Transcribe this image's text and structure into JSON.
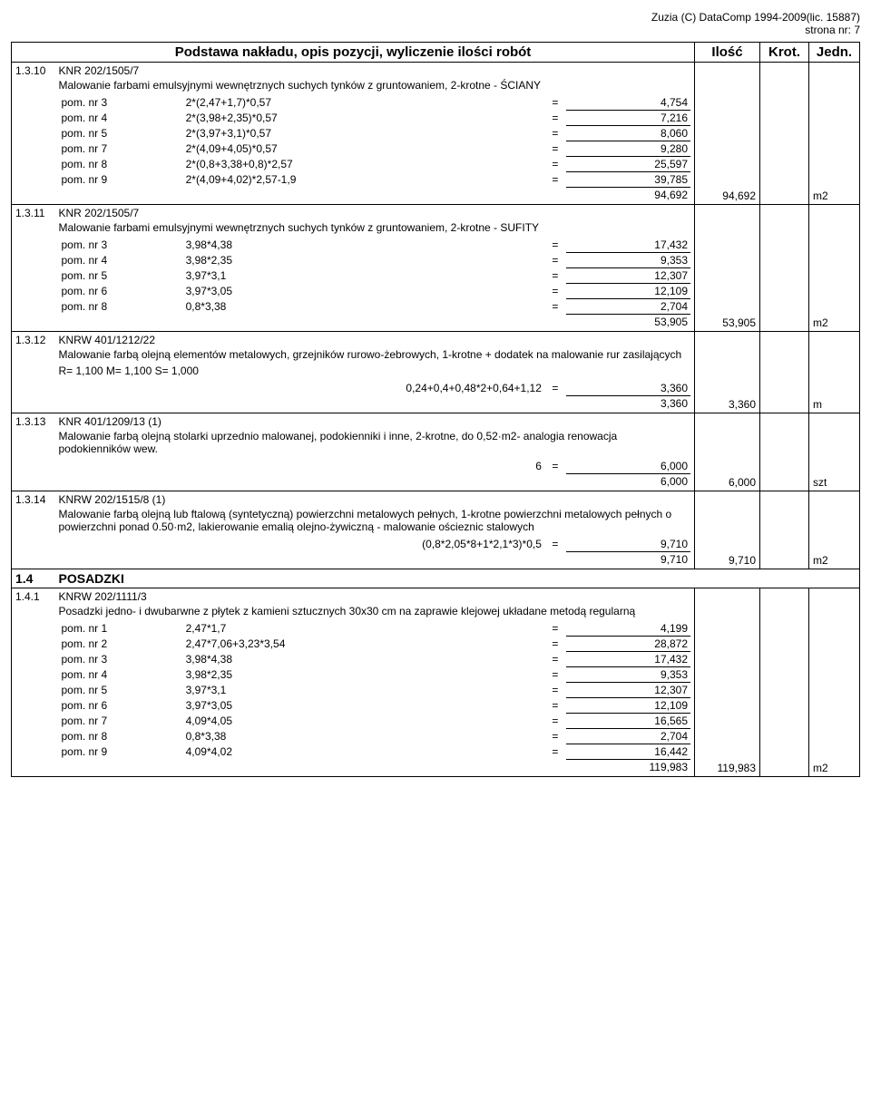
{
  "header": {
    "line1": "Zuzia (C) DataComp 1994-2009(lic. 15887)",
    "line2": "strona nr:       7"
  },
  "columns": {
    "desc": "Podstawa nakładu, opis pozycji, wyliczenie ilości robót",
    "qty": "Ilość",
    "krot": "Krot.",
    "jedn": "Jedn."
  },
  "rows": [
    {
      "code": "1.3.10",
      "ref": "KNR 202/1505/7",
      "text": "Malowanie farbami emulsyjnymi wewnętrznych suchych tynków z gruntowaniem, 2-krotne - ŚCIANY",
      "lines": [
        {
          "lbl": "pom. nr 3",
          "expr": "2*(2,47+1,7)*0,57",
          "val": "4,754"
        },
        {
          "lbl": "pom. nr 4",
          "expr": "2*(3,98+2,35)*0,57",
          "val": "7,216"
        },
        {
          "lbl": "pom. nr 5",
          "expr": "2*(3,97+3,1)*0,57",
          "val": "8,060"
        },
        {
          "lbl": "pom. nr 7",
          "expr": "2*(4,09+4,05)*0,57",
          "val": "9,280"
        },
        {
          "lbl": "pom. nr 8",
          "expr": "2*(0,8+3,38+0,8)*2,57",
          "val": "25,597"
        },
        {
          "lbl": "pom. nr 9",
          "expr": "2*(4,09+4,02)*2,57-1,9",
          "val": "39,785"
        }
      ],
      "sum": "94,692",
      "qty": "94,692",
      "jedn": "m2"
    },
    {
      "code": "1.3.11",
      "ref": "KNR 202/1505/7",
      "text": "Malowanie farbami emulsyjnymi wewnętrznych suchych tynków z gruntowaniem, 2-krotne - SUFITY",
      "lines": [
        {
          "lbl": "pom. nr 3",
          "expr": "3,98*4,38",
          "val": "17,432"
        },
        {
          "lbl": "pom. nr 4",
          "expr": "3,98*2,35",
          "val": "9,353"
        },
        {
          "lbl": "pom. nr 5",
          "expr": "3,97*3,1",
          "val": "12,307"
        },
        {
          "lbl": "pom. nr 6",
          "expr": "3,97*3,05",
          "val": "12,109"
        },
        {
          "lbl": "pom. nr 8",
          "expr": "0,8*3,38",
          "val": "2,704"
        }
      ],
      "sum": "53,905",
      "qty": "53,905",
      "jedn": "m2"
    },
    {
      "code": "1.3.12",
      "ref": "KNRW 401/1212/22",
      "text": "Malowanie farbą olejną elementów metalowych, grzejników rurowo-żebrowych, 1-krotne + dodatek na malowanie rur zasilających",
      "extra": "R= 1,100  M= 1,100  S= 1,000",
      "lines": [
        {
          "lbl": "",
          "expr": "0,24+0,4+0,48*2+0,64+1,12",
          "val": "3,360"
        }
      ],
      "sum": "3,360",
      "qty": "3,360",
      "jedn": "m"
    },
    {
      "code": "1.3.13",
      "ref": "KNR 401/1209/13 (1)",
      "text": "Malowanie farbą olejną stolarki uprzednio malowanej, podokienniki i inne, 2-krotne, do 0,52·m2- analogia renowacja podokienników wew.",
      "lines": [
        {
          "lbl": "",
          "expr": "6",
          "val": "6,000",
          "center": true
        }
      ],
      "sum": "6,000",
      "qty": "6,000",
      "jedn": "szt"
    },
    {
      "code": "1.3.14",
      "ref": "KNRW 202/1515/8 (1)",
      "text": "Malowanie farbą olejną lub ftalową (syntetyczną) powierzchni metalowych pełnych, 1-krotne powierzchni metalowych pełnych o powierzchni ponad 0.50·m2, lakierowanie emalią olejno-żywiczną - malowanie ościeznic stalowych",
      "lines": [
        {
          "lbl": "",
          "expr": "(0,8*2,05*8+1*2,1*3)*0,5",
          "val": "9,710"
        }
      ],
      "sum": "9,710",
      "qty": "9,710",
      "jedn": "m2"
    }
  ],
  "section": {
    "code": "1.4",
    "title": "POSADZKI"
  },
  "rows2": [
    {
      "code": "1.4.1",
      "ref": "KNRW 202/1111/3",
      "text": "Posadzki jedno- i dwubarwne z płytek z kamieni sztucznych 30x30 cm na zaprawie klejowej układane metodą regularną",
      "lines": [
        {
          "lbl": "pom. nr 1",
          "expr": "2,47*1,7",
          "val": "4,199"
        },
        {
          "lbl": "pom. nr 2",
          "expr": "2,47*7,06+3,23*3,54",
          "val": "28,872"
        },
        {
          "lbl": "pom. nr 3",
          "expr": "3,98*4,38",
          "val": "17,432"
        },
        {
          "lbl": "pom. nr 4",
          "expr": "3,98*2,35",
          "val": "9,353"
        },
        {
          "lbl": "pom. nr 5",
          "expr": "3,97*3,1",
          "val": "12,307"
        },
        {
          "lbl": "pom. nr 6",
          "expr": "3,97*3,05",
          "val": "12,109"
        },
        {
          "lbl": "pom. nr 7",
          "expr": "4,09*4,05",
          "val": "16,565"
        },
        {
          "lbl": "pom. nr 8",
          "expr": "0,8*3,38",
          "val": "2,704"
        },
        {
          "lbl": "pom. nr 9",
          "expr": "4,09*4,02",
          "val": "16,442"
        }
      ],
      "sum": "119,983",
      "qty": "119,983",
      "jedn": "m2"
    }
  ]
}
